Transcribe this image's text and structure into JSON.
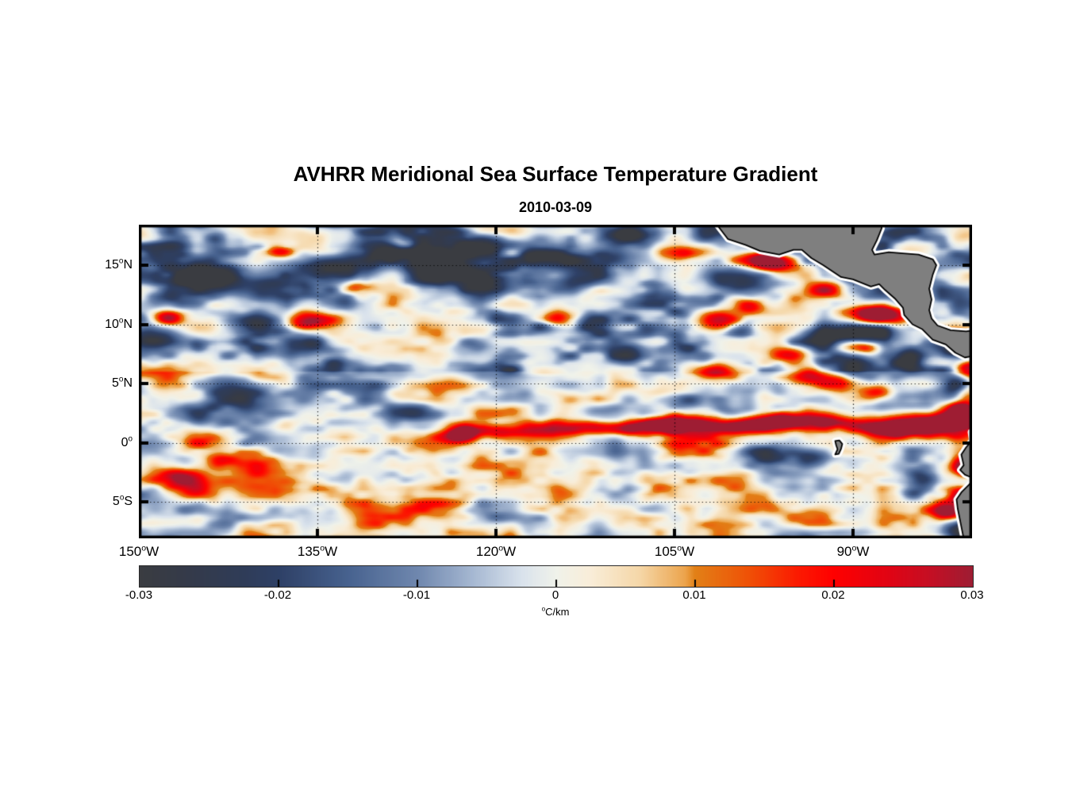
{
  "title": "AVHRR Meridional Sea Surface Temperature Gradient",
  "date": "2010-03-09",
  "deg_mark": "o",
  "chart_data": {
    "type": "heatmap",
    "title": "AVHRR Meridional Sea Surface Temperature Gradient",
    "subtitle": "2010-03-09",
    "value_range": [
      -0.03,
      0.03
    ],
    "x_axis": {
      "range_lon": [
        -150,
        -80
      ],
      "ticks": [
        {
          "n": "150",
          "d": "W",
          "lon": -150
        },
        {
          "n": "135",
          "d": "W",
          "lon": -135
        },
        {
          "n": "120",
          "d": "W",
          "lon": -120
        },
        {
          "n": "105",
          "d": "W",
          "lon": -105
        },
        {
          "n": "90",
          "d": "W",
          "lon": -90
        }
      ]
    },
    "y_axis": {
      "range_lat": [
        -8.08,
        18.42
      ],
      "ticks": [
        {
          "n": "15",
          "d": "N",
          "lat": 15
        },
        {
          "n": "10",
          "d": "N",
          "lat": 10
        },
        {
          "n": "5",
          "d": "N",
          "lat": 5
        },
        {
          "n": "0",
          "d": "",
          "lat": 0
        },
        {
          "n": "5",
          "d": "S",
          "lat": -5
        }
      ]
    },
    "grid": {
      "lat": [
        15,
        10,
        5,
        0,
        -5
      ],
      "lon": [
        -135,
        -120,
        -105,
        -90
      ],
      "style": "dotted"
    },
    "colorbar": {
      "labels": [
        "-0.03",
        "-0.02",
        "-0.01",
        "0",
        "0.01",
        "0.02",
        "0.03"
      ],
      "values": [
        -0.03,
        -0.02,
        -0.01,
        0,
        0.01,
        0.02,
        0.03
      ],
      "unit_sup": "o",
      "unit_main": "C/km",
      "colormap": [
        {
          "t": 0.0,
          "c": "#3a3c41"
        },
        {
          "t": 0.06,
          "c": "#343a4a"
        },
        {
          "t": 0.125,
          "c": "#2f3c58"
        },
        {
          "t": 0.167,
          "c": "#2e4066"
        },
        {
          "t": 0.25,
          "c": "#47628f"
        },
        {
          "t": 0.333,
          "c": "#6f87ae"
        },
        {
          "t": 0.4,
          "c": "#a6b8d2"
        },
        {
          "t": 0.458,
          "c": "#d9e2ec"
        },
        {
          "t": 0.5,
          "c": "#f0f2ea"
        },
        {
          "t": 0.542,
          "c": "#f9edd8"
        },
        {
          "t": 0.6,
          "c": "#f5d7a8"
        },
        {
          "t": 0.655,
          "c": "#eca44c"
        },
        {
          "t": 0.667,
          "c": "#e28017"
        },
        {
          "t": 0.73,
          "c": "#ef5206"
        },
        {
          "t": 0.79,
          "c": "#fb1a01"
        },
        {
          "t": 0.833,
          "c": "#ff0000"
        },
        {
          "t": 0.9,
          "c": "#e00414"
        },
        {
          "t": 0.95,
          "c": "#c40f24"
        },
        {
          "t": 1.0,
          "c": "#9e1d33"
        }
      ]
    },
    "land": {
      "fill": "#7f7f7f",
      "outline": "#000000",
      "halo": "#ffffff",
      "polygons": {
        "central_america": [
          [
            -101.8,
            18.9
          ],
          [
            -100.5,
            17.2
          ],
          [
            -99.0,
            16.7
          ],
          [
            -97.8,
            16.2
          ],
          [
            -96.2,
            15.9
          ],
          [
            -95.0,
            16.3
          ],
          [
            -94.3,
            16.3
          ],
          [
            -93.5,
            15.6
          ],
          [
            -92.5,
            15.0
          ],
          [
            -91.0,
            14.0
          ],
          [
            -90.0,
            13.8
          ],
          [
            -88.5,
            13.2
          ],
          [
            -87.8,
            13.4
          ],
          [
            -87.3,
            12.9
          ],
          [
            -86.5,
            12.2
          ],
          [
            -85.8,
            11.4
          ],
          [
            -85.7,
            10.8
          ],
          [
            -85.0,
            10.0
          ],
          [
            -84.2,
            9.6
          ],
          [
            -83.3,
            8.7
          ],
          [
            -82.2,
            8.3
          ],
          [
            -81.4,
            7.6
          ],
          [
            -80.6,
            7.2
          ],
          [
            -79.0,
            7.5
          ],
          [
            -79.0,
            9.6
          ],
          [
            -80.5,
            9.4
          ],
          [
            -81.8,
            9.5
          ],
          [
            -82.9,
            9.9
          ],
          [
            -83.4,
            10.5
          ],
          [
            -83.6,
            11.2
          ],
          [
            -83.4,
            12.1
          ],
          [
            -83.6,
            13.0
          ],
          [
            -83.3,
            14.2
          ],
          [
            -83.0,
            15.0
          ],
          [
            -83.3,
            15.5
          ],
          [
            -84.5,
            15.9
          ],
          [
            -85.8,
            16.0
          ],
          [
            -87.0,
            16.1
          ],
          [
            -88.2,
            15.9
          ],
          [
            -88.4,
            16.3
          ],
          [
            -88.0,
            17.1
          ],
          [
            -87.6,
            18.1
          ],
          [
            -87.5,
            19.2
          ],
          [
            -102.3,
            19.2
          ]
        ],
        "south_america": [
          [
            -78.5,
            1.4
          ],
          [
            -80.1,
            0.9
          ],
          [
            -80.0,
            0.2
          ],
          [
            -80.5,
            -0.4
          ],
          [
            -80.9,
            -1.0
          ],
          [
            -80.7,
            -1.9
          ],
          [
            -81.0,
            -2.3
          ],
          [
            -80.6,
            -2.7
          ],
          [
            -79.9,
            -3.0
          ],
          [
            -80.2,
            -3.5
          ],
          [
            -80.9,
            -4.2
          ],
          [
            -81.3,
            -4.8
          ],
          [
            -81.2,
            -5.6
          ],
          [
            -81.0,
            -6.6
          ],
          [
            -80.8,
            -7.6
          ],
          [
            -80.6,
            -8.6
          ],
          [
            -78.5,
            -8.6
          ]
        ],
        "galapagos": [
          [
            -91.5,
            0.15
          ],
          [
            -91.15,
            0.2
          ],
          [
            -90.9,
            -0.1
          ],
          [
            -91.0,
            -0.5
          ],
          [
            -91.2,
            -0.95
          ],
          [
            -91.5,
            -1.0
          ],
          [
            -91.3,
            -0.55
          ],
          [
            -91.42,
            -0.2
          ]
        ]
      }
    },
    "field": {
      "bias": {
        "north_lat": 7,
        "north": -0.0032,
        "south_lat": 4,
        "south": 0.0024
      },
      "octaves": [
        {
          "sx": 5.0,
          "sy": 2.0,
          "amp": 0.011,
          "seed": 11
        },
        {
          "sx": 2.4,
          "sy": 1.15,
          "amp": 0.008,
          "seed": 23
        },
        {
          "sx": 1.25,
          "sy": 0.62,
          "amp": 0.0045,
          "seed": 37
        }
      ],
      "features": [
        [
          -148.6,
          8.7,
          1.7,
          0.9,
          -0.031
        ],
        [
          -147.2,
          12.1,
          1.5,
          0.8,
          -0.022
        ],
        [
          -143.6,
          13.4,
          2.1,
          0.9,
          -0.028
        ],
        [
          -140.2,
          10.1,
          1.6,
          0.7,
          -0.027
        ],
        [
          -138.6,
          12.9,
          1.6,
          0.8,
          -0.024
        ],
        [
          -134.2,
          14.6,
          2.3,
          0.9,
          -0.031
        ],
        [
          -129.2,
          16.4,
          2.0,
          0.8,
          -0.029
        ],
        [
          -124.6,
          15.3,
          2.1,
          0.9,
          -0.031
        ],
        [
          -121.0,
          16.6,
          1.8,
          0.8,
          -0.026
        ],
        [
          -116.6,
          15.9,
          2.0,
          0.8,
          -0.029
        ],
        [
          -113.2,
          13.9,
          1.8,
          0.8,
          -0.024
        ],
        [
          -110.0,
          15.6,
          1.6,
          0.7,
          -0.022
        ],
        [
          -120.2,
          13.1,
          2.4,
          0.8,
          -0.021
        ],
        [
          -136.6,
          8.1,
          1.5,
          0.7,
          -0.02
        ],
        [
          -142.2,
          3.9,
          1.8,
          1.0,
          -0.022
        ],
        [
          -145.2,
          2.4,
          1.5,
          0.8,
          -0.017
        ],
        [
          -130.2,
          3.8,
          1.6,
          0.9,
          -0.021
        ],
        [
          -127.4,
          2.6,
          1.2,
          0.6,
          -0.017
        ],
        [
          -122.6,
          8.2,
          1.2,
          0.6,
          -0.017
        ],
        [
          -104.2,
          3.6,
          1.5,
          0.7,
          -0.02
        ],
        [
          -100.6,
          2.3,
          1.3,
          0.6,
          -0.018
        ],
        [
          -99.4,
          13.9,
          1.9,
          0.8,
          -0.034
        ],
        [
          -89.3,
          9.4,
          1.9,
          0.9,
          -0.042
        ],
        [
          -85.6,
          7.0,
          1.0,
          0.6,
          -0.024
        ],
        [
          -81.1,
          4.7,
          1.0,
          0.7,
          -0.036
        ],
        [
          -80.7,
          -7.0,
          1.3,
          0.8,
          -0.036
        ],
        [
          -84.6,
          -4.0,
          1.2,
          0.6,
          -0.02
        ],
        [
          -97.6,
          -0.8,
          1.5,
          0.6,
          -0.022
        ],
        [
          -93.6,
          -1.3,
          1.2,
          0.5,
          -0.018
        ],
        [
          -84.3,
          -2.9,
          1.0,
          0.5,
          -0.022
        ],
        [
          -81.2,
          7.9,
          0.9,
          0.5,
          -0.03
        ],
        [
          -108.9,
          17.5,
          1.6,
          0.7,
          -0.024
        ],
        [
          -102.4,
          17.8,
          1.5,
          0.7,
          -0.022
        ],
        [
          -93.0,
          9.0,
          1.5,
          0.7,
          -0.02
        ],
        [
          -96.9,
          15.4,
          1.7,
          0.55,
          0.05
        ],
        [
          -88.4,
          10.8,
          1.8,
          0.65,
          0.054
        ],
        [
          -89.6,
          8.2,
          1.4,
          0.5,
          0.04
        ],
        [
          -90.3,
          14.9,
          1.2,
          0.5,
          0.03
        ],
        [
          -81.6,
          8.8,
          0.8,
          0.5,
          0.03
        ],
        [
          -80.2,
          6.3,
          0.9,
          0.6,
          0.044
        ],
        [
          -80.5,
          4.2,
          0.8,
          0.5,
          0.036
        ],
        [
          -80.9,
          2.9,
          0.8,
          0.5,
          0.032
        ],
        [
          -80.4,
          -2.1,
          0.9,
          0.6,
          0.042
        ],
        [
          -80.9,
          -4.6,
          0.8,
          0.6,
          0.036
        ],
        [
          -81.7,
          -5.9,
          1.1,
          0.5,
          0.03
        ],
        [
          -122.8,
          0.8,
          1.0,
          0.5,
          0.04
        ],
        [
          -119.6,
          1.0,
          1.5,
          0.45,
          0.026
        ],
        [
          -116.0,
          1.2,
          1.7,
          0.5,
          0.028
        ],
        [
          -112.6,
          1.3,
          1.6,
          0.45,
          0.024
        ],
        [
          -109.0,
          1.2,
          1.5,
          0.45,
          0.028
        ],
        [
          -106.0,
          1.5,
          1.4,
          0.5,
          0.026
        ],
        [
          -103.0,
          1.6,
          1.5,
          0.5,
          0.024
        ],
        [
          -99.6,
          1.5,
          1.6,
          0.5,
          0.032
        ],
        [
          -96.0,
          1.8,
          1.5,
          0.55,
          0.038
        ],
        [
          -92.6,
          1.8,
          1.5,
          0.55,
          0.032
        ],
        [
          -89.6,
          1.5,
          1.5,
          0.5,
          0.028
        ],
        [
          -86.6,
          1.2,
          1.5,
          0.6,
          0.042
        ],
        [
          -83.6,
          1.5,
          1.6,
          0.6,
          0.046
        ],
        [
          -81.0,
          1.9,
          1.3,
          0.7,
          0.042
        ],
        [
          -146.6,
          -2.9,
          1.7,
          0.7,
          0.034
        ],
        [
          -143.0,
          -1.6,
          1.2,
          0.5,
          0.02
        ],
        [
          -135.8,
          10.3,
          1.5,
          0.5,
          0.03
        ],
        [
          -131.6,
          13.3,
          1.0,
          0.45,
          0.026
        ],
        [
          -138.2,
          16.2,
          0.9,
          0.4,
          0.026
        ],
        [
          -147.6,
          10.6,
          1.0,
          0.45,
          0.028
        ],
        [
          -128.0,
          16.9,
          1.0,
          0.4,
          0.024
        ],
        [
          -118.6,
          16.1,
          0.9,
          0.4,
          0.022
        ],
        [
          -115.0,
          10.5,
          1.2,
          0.5,
          0.02
        ],
        [
          -104.6,
          16.1,
          1.1,
          0.45,
          0.022
        ],
        [
          -101.0,
          10.4,
          1.3,
          0.5,
          0.026
        ],
        [
          -98.6,
          11.6,
          1.0,
          0.45,
          0.022
        ],
        [
          -93.6,
          5.6,
          1.3,
          0.5,
          0.026
        ],
        [
          -90.6,
          5.0,
          1.2,
          0.5,
          0.03
        ],
        [
          -88.0,
          4.3,
          1.0,
          0.5,
          0.026
        ],
        [
          -92.2,
          12.9,
          1.2,
          0.5,
          0.026
        ],
        [
          -95.5,
          7.5,
          1.2,
          0.5,
          0.022
        ],
        [
          -101.5,
          6.0,
          1.2,
          0.5,
          0.02
        ]
      ]
    }
  }
}
